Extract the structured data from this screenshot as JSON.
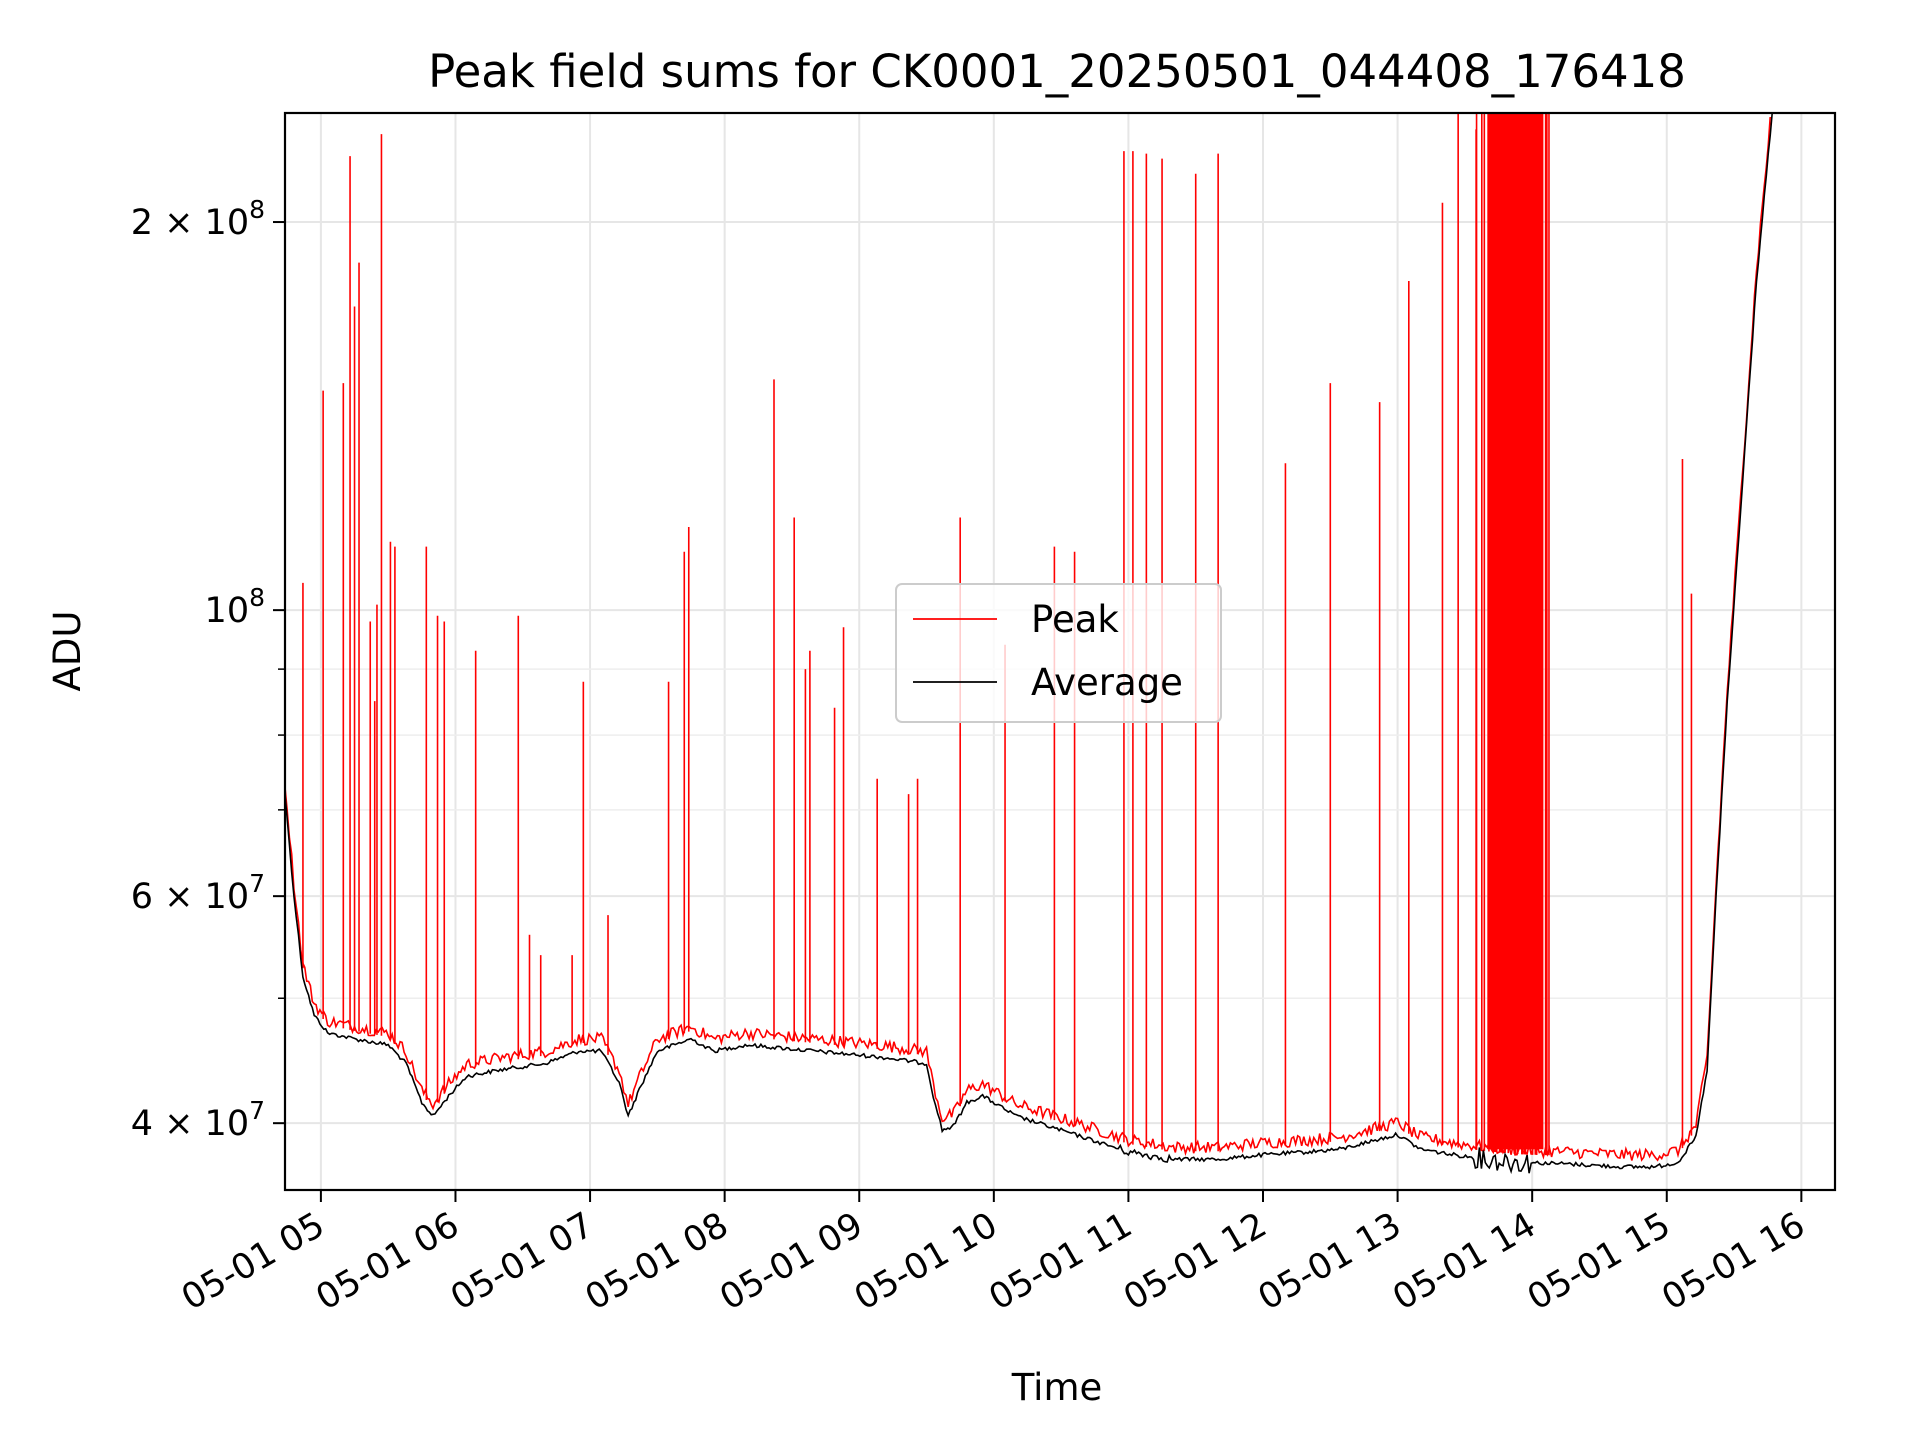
{
  "chart_data": {
    "type": "line",
    "title": "Peak field sums for CK0001_20250501_044408_176418",
    "xlabel": "Time",
    "ylabel": "ADU",
    "y_scale": "log",
    "xlim": [
      "2025-05-01 04:44",
      "2025-05-01 16:15"
    ],
    "ylim": [
      35500000,
      243000000
    ],
    "grid": true,
    "legend": {
      "placement": "center"
    },
    "x_ticks": [
      {
        "time": "2025-05-01 05:00",
        "label": "05-01 05"
      },
      {
        "time": "2025-05-01 06:00",
        "label": "05-01 06"
      },
      {
        "time": "2025-05-01 07:00",
        "label": "05-01 07"
      },
      {
        "time": "2025-05-01 08:00",
        "label": "05-01 08"
      },
      {
        "time": "2025-05-01 09:00",
        "label": "05-01 09"
      },
      {
        "time": "2025-05-01 10:00",
        "label": "05-01 10"
      },
      {
        "time": "2025-05-01 11:00",
        "label": "05-01 11"
      },
      {
        "time": "2025-05-01 12:00",
        "label": "05-01 12"
      },
      {
        "time": "2025-05-01 13:00",
        "label": "05-01 13"
      },
      {
        "time": "2025-05-01 14:00",
        "label": "05-01 14"
      },
      {
        "time": "2025-05-01 15:00",
        "label": "05-01 15"
      },
      {
        "time": "2025-05-01 16:00",
        "label": "05-01 16"
      }
    ],
    "y_ticks": [
      {
        "value": 40000000,
        "base": "4 × 10",
        "exp": "7"
      },
      {
        "value": 60000000,
        "base": "6 × 10",
        "exp": "7"
      },
      {
        "value": 100000000,
        "base": "10",
        "exp": "8"
      },
      {
        "value": 200000000,
        "base": "2 × 10",
        "exp": "8"
      }
    ],
    "y_minor_ticks": [
      50000000,
      70000000,
      80000000,
      90000000
    ],
    "series": [
      {
        "name": "Average",
        "color": "#000000",
        "points": [
          [
            "2025-05-01 04:44",
            72000000
          ],
          [
            "2025-05-01 04:48",
            60000000
          ],
          [
            "2025-05-01 04:52",
            52000000
          ],
          [
            "2025-05-01 04:57",
            48500000
          ],
          [
            "2025-05-01 05:03",
            47000000
          ],
          [
            "2025-05-01 05:15",
            46500000
          ],
          [
            "2025-05-01 05:30",
            46000000
          ],
          [
            "2025-05-01 05:38",
            44500000
          ],
          [
            "2025-05-01 05:45",
            41500000
          ],
          [
            "2025-05-01 05:50",
            40500000
          ],
          [
            "2025-05-01 05:57",
            42000000
          ],
          [
            "2025-05-01 06:05",
            43500000
          ],
          [
            "2025-05-01 06:20",
            44000000
          ],
          [
            "2025-05-01 06:40",
            44500000
          ],
          [
            "2025-05-01 06:55",
            45500000
          ],
          [
            "2025-05-01 07:05",
            45500000
          ],
          [
            "2025-05-01 07:13",
            43000000
          ],
          [
            "2025-05-01 07:17",
            40500000
          ],
          [
            "2025-05-01 07:22",
            42500000
          ],
          [
            "2025-05-01 07:30",
            45500000
          ],
          [
            "2025-05-01 07:45",
            46500000
          ],
          [
            "2025-05-01 07:55",
            45500000
          ],
          [
            "2025-05-01 08:10",
            46000000
          ],
          [
            "2025-05-01 08:40",
            45500000
          ],
          [
            "2025-05-01 09:10",
            45000000
          ],
          [
            "2025-05-01 09:30",
            44500000
          ],
          [
            "2025-05-01 09:33",
            42000000
          ],
          [
            "2025-05-01 09:37",
            39500000
          ],
          [
            "2025-05-01 09:42",
            39800000
          ],
          [
            "2025-05-01 09:48",
            41500000
          ],
          [
            "2025-05-01 09:55",
            42000000
          ],
          [
            "2025-05-01 10:10",
            40500000
          ],
          [
            "2025-05-01 10:30",
            39500000
          ],
          [
            "2025-05-01 10:50",
            38500000
          ],
          [
            "2025-05-01 11:00",
            38000000
          ],
          [
            "2025-05-01 11:20",
            37500000
          ],
          [
            "2025-05-01 11:40",
            37500000
          ],
          [
            "2025-05-01 12:00",
            37800000
          ],
          [
            "2025-05-01 12:20",
            38000000
          ],
          [
            "2025-05-01 12:35",
            38200000
          ],
          [
            "2025-05-01 12:50",
            38800000
          ],
          [
            "2025-05-01 13:00",
            39200000
          ],
          [
            "2025-05-01 13:10",
            38200000
          ],
          [
            "2025-05-01 13:25",
            37800000
          ],
          [
            "2025-05-01 13:40",
            37500000
          ],
          [
            "2025-05-01 13:55",
            37300000
          ],
          [
            "2025-05-01 14:15",
            37200000
          ],
          [
            "2025-05-01 14:40",
            37000000
          ],
          [
            "2025-05-01 14:55",
            37000000
          ],
          [
            "2025-05-01 15:05",
            37300000
          ],
          [
            "2025-05-01 15:13",
            39000000
          ],
          [
            "2025-05-01 15:18",
            44000000
          ],
          [
            "2025-05-01 15:22",
            60000000
          ],
          [
            "2025-05-01 15:27",
            85000000
          ],
          [
            "2025-05-01 15:33",
            120000000
          ],
          [
            "2025-05-01 15:40",
            180000000
          ],
          [
            "2025-05-01 15:47",
            243000000
          ]
        ]
      },
      {
        "name": "Peak",
        "color": "#ff0000",
        "spikes": [
          [
            "2025-05-01 04:52",
            105000000
          ],
          [
            "2025-05-01 05:01",
            148000000
          ],
          [
            "2025-05-01 05:10",
            150000000
          ],
          [
            "2025-05-01 05:13",
            225000000
          ],
          [
            "2025-05-01 05:15",
            172000000
          ],
          [
            "2025-05-01 05:17",
            186000000
          ],
          [
            "2025-05-01 05:22",
            98000000
          ],
          [
            "2025-05-01 05:24",
            85000000
          ],
          [
            "2025-05-01 05:25",
            101000000
          ],
          [
            "2025-05-01 05:27",
            234000000
          ],
          [
            "2025-05-01 05:31",
            113000000
          ],
          [
            "2025-05-01 05:33",
            112000000
          ],
          [
            "2025-05-01 05:47",
            112000000
          ],
          [
            "2025-05-01 05:52",
            99000000
          ],
          [
            "2025-05-01 05:55",
            98000000
          ],
          [
            "2025-05-01 06:09",
            93000000
          ],
          [
            "2025-05-01 06:28",
            99000000
          ],
          [
            "2025-05-01 06:33",
            56000000
          ],
          [
            "2025-05-01 06:38",
            54000000
          ],
          [
            "2025-05-01 06:52",
            54000000
          ],
          [
            "2025-05-01 06:57",
            88000000
          ],
          [
            "2025-05-01 07:08",
            58000000
          ],
          [
            "2025-05-01 07:35",
            88000000
          ],
          [
            "2025-05-01 07:42",
            111000000
          ],
          [
            "2025-05-01 07:44",
            116000000
          ],
          [
            "2025-05-01 08:22",
            151000000
          ],
          [
            "2025-05-01 08:31",
            118000000
          ],
          [
            "2025-05-01 08:36",
            90000000
          ],
          [
            "2025-05-01 08:38",
            93000000
          ],
          [
            "2025-05-01 08:49",
            84000000
          ],
          [
            "2025-05-01 08:53",
            97000000
          ],
          [
            "2025-05-01 09:08",
            74000000
          ],
          [
            "2025-05-01 09:22",
            72000000
          ],
          [
            "2025-05-01 09:26",
            74000000
          ],
          [
            "2025-05-01 09:45",
            118000000
          ],
          [
            "2025-05-01 10:05",
            94000000
          ],
          [
            "2025-05-01 10:27",
            112000000
          ],
          [
            "2025-05-01 10:36",
            111000000
          ],
          [
            "2025-05-01 10:58",
            227000000
          ],
          [
            "2025-05-01 11:02",
            227000000
          ],
          [
            "2025-05-01 11:08",
            226000000
          ],
          [
            "2025-05-01 11:15",
            224000000
          ],
          [
            "2025-05-01 11:30",
            218000000
          ],
          [
            "2025-05-01 11:40",
            226000000
          ],
          [
            "2025-05-01 12:10",
            130000000
          ],
          [
            "2025-05-01 12:30",
            150000000
          ],
          [
            "2025-05-01 12:52",
            145000000
          ],
          [
            "2025-05-01 13:05",
            180000000
          ],
          [
            "2025-05-01 13:20",
            207000000
          ],
          [
            "2025-05-01 13:27",
            243000000
          ],
          [
            "2025-05-01 13:35",
            236000000
          ],
          [
            "2025-05-01 13:43",
            243000000
          ],
          [
            "2025-05-01 13:52",
            243000000
          ],
          [
            "2025-05-01 14:02",
            243000000
          ],
          [
            "2025-05-01 14:06",
            243000000
          ],
          [
            "2025-05-01 15:07",
            131000000
          ],
          [
            "2025-05-01 15:11",
            103000000
          ]
        ]
      }
    ]
  }
}
